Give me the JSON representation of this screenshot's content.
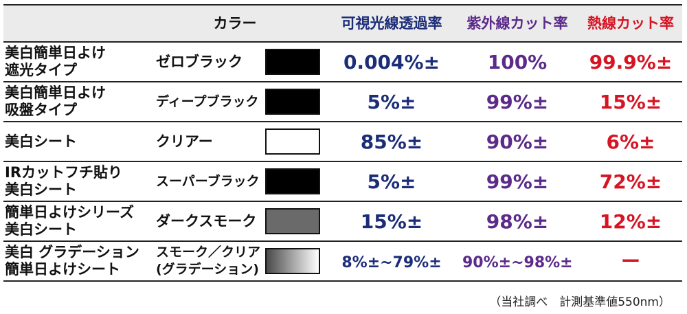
{
  "header": {
    "color": "カラー",
    "visible": "可視光線透過率",
    "uv": "紫外線カット率",
    "heat": "熱線カット率"
  },
  "colors": {
    "visible": "#1c2d78",
    "uv": "#5b2a8a",
    "heat": "#d61424"
  },
  "rows": [
    {
      "product": "美白簡単日よけ\n遮光タイプ",
      "color": "ゼロブラック",
      "swatch": "black",
      "visible": "0.004%±",
      "uv": "100%",
      "heat": "99.9%±"
    },
    {
      "product": "美白簡単日よけ\n吸盤タイプ",
      "color": "ディープブラック",
      "swatch": "black",
      "visible": "5%±",
      "uv": "99%±",
      "heat": "15%±"
    },
    {
      "product": "美白シート",
      "color": "クリアー",
      "swatch": "clear",
      "visible": "85%±",
      "uv": "90%±",
      "heat": "6%±"
    },
    {
      "product": "IRカットフチ貼り\n美白シート",
      "color": "スーパーブラック",
      "swatch": "black",
      "visible": "5%±",
      "uv": "99%±",
      "heat": "72%±"
    },
    {
      "product": "簡単日よけシリーズ\n美白シート",
      "color": "ダークスモーク",
      "swatch": "smoke",
      "visible": "15%±",
      "uv": "98%±",
      "heat": "12%±"
    },
    {
      "product": "美白 グラデーション\n簡単日よけシート",
      "color": "スモーク／クリア\n(グラデーション)",
      "swatch": "gradient",
      "visible": "8%±~79%±",
      "uv": "90%±~98%±",
      "heat": "ー"
    }
  ],
  "note": "（当社調べ　計測基準値550nm）"
}
